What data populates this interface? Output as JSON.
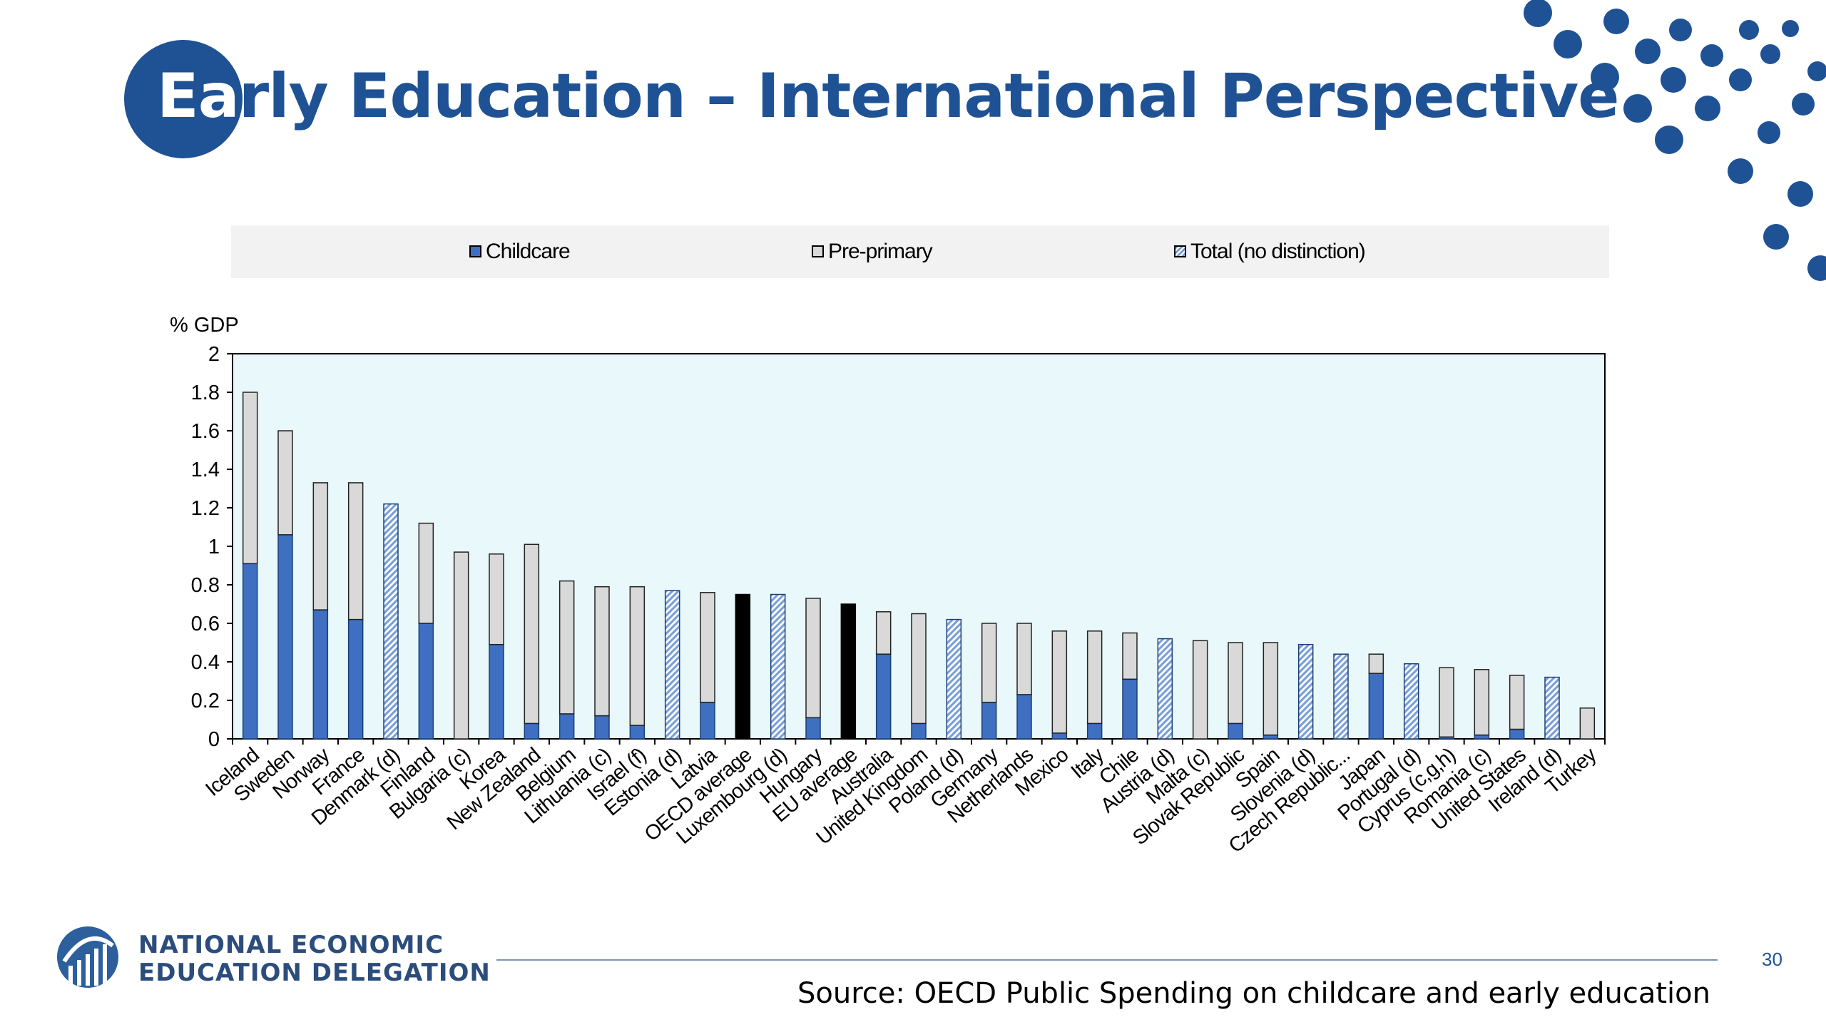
{
  "title": {
    "first": "Ea",
    "rest": "rly Education – International Perspective"
  },
  "colors": {
    "title": "#1f5294",
    "childcare": "#3f6fc0",
    "preprimary": "#d9d9d9",
    "total_hatch": "#9bbbe6",
    "average": "#000000",
    "plot_bg": "#e9f8fb",
    "legend_bg": "#f2f2f2"
  },
  "chart_data": {
    "type": "bar",
    "stacked": true,
    "ylabel": "% GDP",
    "ylim": [
      0,
      2
    ],
    "yticks": [
      "0",
      "0.2",
      "0.4",
      "0.6",
      "0.8",
      "1",
      "1.2",
      "1.4",
      "1.6",
      "1.8",
      "2"
    ],
    "legend": [
      "Childcare",
      "Pre-primary",
      "Total (no distinction)"
    ],
    "legend_position": "top",
    "grid": false,
    "categories": [
      "Iceland",
      "Sweden",
      "Norway",
      "France",
      "Denmark (d)",
      "Finland",
      "Bulgaria (c)",
      "Korea",
      "New Zealand",
      "Belgium",
      "Lithuania (c)",
      "Israel (f)",
      "Estonia (d)",
      "Latvia",
      "OECD average",
      "Luxembourg (d)",
      "Hungary",
      "EU average",
      "Australia",
      "United Kingdom",
      "Poland (d)",
      "Germany",
      "Netherlands",
      "Mexico",
      "Italy",
      "Chile",
      "Austria (d)",
      "Malta (c)",
      "Slovak Republic",
      "Spain",
      "Slovenia (d)",
      "Czech Republic...",
      "Japan",
      "Portugal (d)",
      "Cyprus (c,g,h)",
      "Romania (c)",
      "United States",
      "Ireland (d)",
      "Turkey"
    ],
    "series": [
      {
        "name": "Childcare",
        "values": [
          0.91,
          1.06,
          0.67,
          0.62,
          0,
          0.6,
          0,
          0.49,
          0.08,
          0.13,
          0.12,
          0.07,
          0,
          0.19,
          0,
          0,
          0.11,
          0,
          0.44,
          0.08,
          0,
          0.19,
          0.23,
          0.03,
          0.08,
          0.31,
          0,
          0,
          0.08,
          0.02,
          0,
          0,
          0.34,
          0,
          0.01,
          0.02,
          0.05,
          0,
          0
        ]
      },
      {
        "name": "Pre-primary",
        "values": [
          0.89,
          0.54,
          0.66,
          0.71,
          0,
          0.52,
          0.97,
          0.47,
          0.93,
          0.69,
          0.67,
          0.72,
          0,
          0.57,
          0,
          0,
          0.62,
          0,
          0.22,
          0.57,
          0,
          0.41,
          0.37,
          0.53,
          0.48,
          0.24,
          0,
          0.51,
          0.42,
          0.48,
          0,
          0,
          0.1,
          0,
          0.36,
          0.34,
          0.28,
          0,
          0.16
        ]
      },
      {
        "name": "Total (no distinction)",
        "values": [
          0,
          0,
          0,
          0,
          1.22,
          0,
          0,
          0,
          0,
          0,
          0,
          0,
          0.77,
          0,
          0,
          0.75,
          0,
          0,
          0,
          0,
          0.62,
          0,
          0,
          0,
          0,
          0,
          0.52,
          0,
          0,
          0,
          0.49,
          0.44,
          0,
          0.39,
          0,
          0,
          0,
          0.32,
          0
        ]
      },
      {
        "name": "Average",
        "values": [
          0,
          0,
          0,
          0,
          0,
          0,
          0,
          0,
          0,
          0,
          0,
          0,
          0,
          0,
          0.75,
          0,
          0,
          0.7,
          0,
          0,
          0,
          0,
          0,
          0,
          0,
          0,
          0,
          0,
          0,
          0,
          0,
          0,
          0,
          0,
          0,
          0,
          0,
          0,
          0
        ]
      }
    ]
  },
  "footer": {
    "org_line1": "NATIONAL ECONOMIC",
    "org_line2": "EDUCATION DELEGATION",
    "page_number": "30",
    "source": "Source: OECD Public Spending on childcare and early education"
  }
}
